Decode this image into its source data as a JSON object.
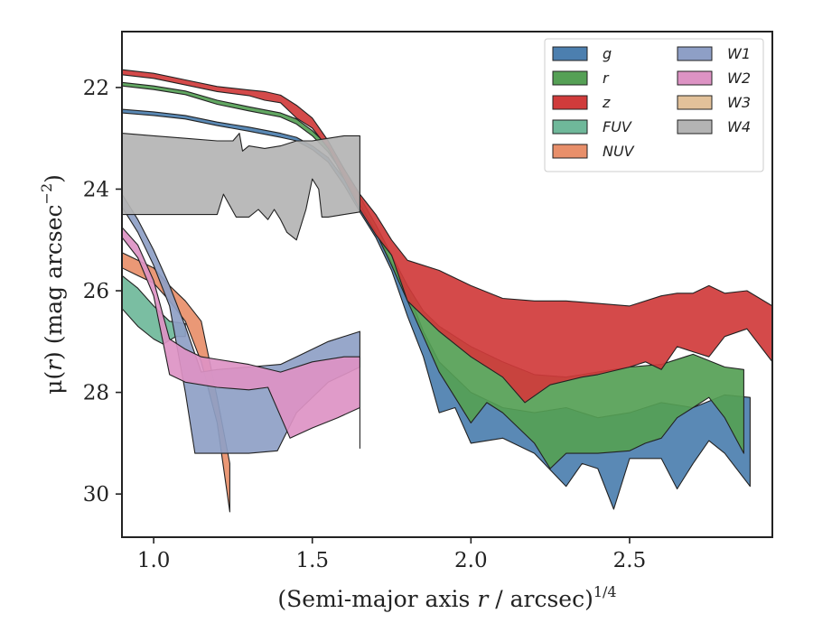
{
  "chart_data": {
    "type": "area",
    "xlabel": "(Semi-major axis r / arcsec)^1/4",
    "xlabel_parts": {
      "prefix": "(Semi-major axis ",
      "var": "r",
      "middle": " / arcsec)",
      "sup": "1/4"
    },
    "ylabel": "μ(r) (mag arcsec^-2)",
    "ylabel_parts": {
      "prefix": "μ(",
      "var": "r",
      "middle": ") (mag arcsec",
      "sup": "−2",
      "suffix": ")"
    },
    "xlim": [
      0.9,
      2.95
    ],
    "ylim": [
      30.85,
      20.9
    ],
    "y_inverted": true,
    "x_ticks": [
      1.0,
      1.5,
      2.0,
      2.5
    ],
    "x_tick_labels": [
      "1.0",
      "1.5",
      "2.0",
      "2.5"
    ],
    "y_ticks": [
      22,
      24,
      26,
      28,
      30
    ],
    "y_tick_labels": [
      "22",
      "24",
      "26",
      "28",
      "30"
    ],
    "legend_position": "top-right",
    "legend_columns": 2,
    "series": [
      {
        "name": "g",
        "color": "#4C7FAF",
        "upper": [
          [
            0.9,
            22.43
          ],
          [
            1.0,
            22.48
          ],
          [
            1.1,
            22.55
          ],
          [
            1.2,
            22.68
          ],
          [
            1.3,
            22.78
          ],
          [
            1.4,
            22.9
          ],
          [
            1.45,
            22.98
          ],
          [
            1.5,
            23.15
          ],
          [
            1.55,
            23.38
          ],
          [
            1.6,
            23.8
          ],
          [
            1.65,
            24.3
          ],
          [
            1.7,
            24.8
          ],
          [
            1.75,
            25.45
          ],
          [
            1.8,
            26.0
          ],
          [
            1.85,
            26.8
          ],
          [
            1.9,
            27.4
          ],
          [
            2.0,
            28.0
          ],
          [
            2.1,
            28.3
          ],
          [
            2.2,
            28.4
          ],
          [
            2.3,
            28.3
          ],
          [
            2.4,
            28.5
          ],
          [
            2.5,
            28.4
          ],
          [
            2.6,
            28.2
          ],
          [
            2.7,
            28.3
          ],
          [
            2.8,
            28.05
          ],
          [
            2.88,
            28.1
          ]
        ],
        "lower": [
          [
            0.9,
            22.5
          ],
          [
            1.0,
            22.55
          ],
          [
            1.1,
            22.62
          ],
          [
            1.2,
            22.75
          ],
          [
            1.3,
            22.86
          ],
          [
            1.4,
            22.98
          ],
          [
            1.45,
            23.05
          ],
          [
            1.5,
            23.22
          ],
          [
            1.55,
            23.47
          ],
          [
            1.6,
            23.92
          ],
          [
            1.65,
            24.45
          ],
          [
            1.7,
            24.95
          ],
          [
            1.75,
            25.6
          ],
          [
            1.8,
            26.5
          ],
          [
            1.85,
            27.3
          ],
          [
            1.9,
            28.4
          ],
          [
            1.95,
            28.3
          ],
          [
            2.0,
            29.0
          ],
          [
            2.1,
            28.9
          ],
          [
            2.2,
            29.2
          ],
          [
            2.3,
            29.85
          ],
          [
            2.35,
            29.4
          ],
          [
            2.4,
            29.5
          ],
          [
            2.45,
            30.3
          ],
          [
            2.5,
            29.3
          ],
          [
            2.6,
            29.3
          ],
          [
            2.65,
            29.9
          ],
          [
            2.7,
            29.4
          ],
          [
            2.75,
            28.95
          ],
          [
            2.8,
            29.2
          ],
          [
            2.88,
            29.85
          ]
        ]
      },
      {
        "name": "r",
        "color": "#55A055",
        "upper": [
          [
            0.9,
            21.9
          ],
          [
            1.0,
            21.97
          ],
          [
            1.1,
            22.07
          ],
          [
            1.2,
            22.25
          ],
          [
            1.3,
            22.38
          ],
          [
            1.4,
            22.5
          ],
          [
            1.45,
            22.62
          ],
          [
            1.5,
            22.85
          ],
          [
            1.55,
            23.15
          ],
          [
            1.6,
            23.6
          ],
          [
            1.65,
            24.15
          ],
          [
            1.7,
            24.7
          ],
          [
            1.75,
            25.3
          ],
          [
            1.8,
            25.9
          ],
          [
            1.85,
            26.4
          ],
          [
            1.9,
            26.7
          ],
          [
            2.0,
            27.1
          ],
          [
            2.1,
            27.4
          ],
          [
            2.2,
            27.65
          ],
          [
            2.3,
            27.7
          ],
          [
            2.4,
            27.6
          ],
          [
            2.5,
            27.5
          ],
          [
            2.6,
            27.45
          ],
          [
            2.7,
            27.25
          ],
          [
            2.8,
            27.5
          ],
          [
            2.86,
            27.55
          ]
        ],
        "lower": [
          [
            0.9,
            21.97
          ],
          [
            1.0,
            22.04
          ],
          [
            1.1,
            22.14
          ],
          [
            1.2,
            22.33
          ],
          [
            1.3,
            22.46
          ],
          [
            1.4,
            22.58
          ],
          [
            1.45,
            22.72
          ],
          [
            1.5,
            22.95
          ],
          [
            1.55,
            23.27
          ],
          [
            1.6,
            23.73
          ],
          [
            1.65,
            24.3
          ],
          [
            1.7,
            24.85
          ],
          [
            1.75,
            25.5
          ],
          [
            1.8,
            26.2
          ],
          [
            1.85,
            26.9
          ],
          [
            1.9,
            27.6
          ],
          [
            1.95,
            28.1
          ],
          [
            2.0,
            28.6
          ],
          [
            2.05,
            28.2
          ],
          [
            2.1,
            28.4
          ],
          [
            2.2,
            29.0
          ],
          [
            2.25,
            29.5
          ],
          [
            2.3,
            29.2
          ],
          [
            2.4,
            29.2
          ],
          [
            2.5,
            29.15
          ],
          [
            2.55,
            29.0
          ],
          [
            2.6,
            28.9
          ],
          [
            2.65,
            28.5
          ],
          [
            2.7,
            28.3
          ],
          [
            2.75,
            28.1
          ],
          [
            2.8,
            28.5
          ],
          [
            2.86,
            29.2
          ]
        ]
      },
      {
        "name": "z",
        "color": "#D03B3B",
        "upper": [
          [
            0.9,
            21.65
          ],
          [
            1.0,
            21.72
          ],
          [
            1.1,
            21.85
          ],
          [
            1.2,
            21.98
          ],
          [
            1.3,
            22.05
          ],
          [
            1.35,
            22.08
          ],
          [
            1.4,
            22.15
          ],
          [
            1.45,
            22.35
          ],
          [
            1.5,
            22.6
          ],
          [
            1.55,
            23.05
          ],
          [
            1.6,
            23.6
          ],
          [
            1.65,
            24.1
          ],
          [
            1.7,
            24.5
          ],
          [
            1.75,
            25.0
          ],
          [
            1.8,
            25.4
          ],
          [
            1.9,
            25.6
          ],
          [
            2.0,
            25.9
          ],
          [
            2.1,
            26.15
          ],
          [
            2.2,
            26.2
          ],
          [
            2.3,
            26.2
          ],
          [
            2.4,
            26.25
          ],
          [
            2.5,
            26.3
          ],
          [
            2.6,
            26.1
          ],
          [
            2.65,
            26.05
          ],
          [
            2.7,
            26.05
          ],
          [
            2.75,
            25.9
          ],
          [
            2.8,
            26.05
          ],
          [
            2.87,
            26.0
          ],
          [
            2.95,
            26.3
          ]
        ],
        "lower": [
          [
            0.9,
            21.75
          ],
          [
            1.0,
            21.82
          ],
          [
            1.1,
            21.95
          ],
          [
            1.2,
            22.08
          ],
          [
            1.3,
            22.16
          ],
          [
            1.35,
            22.25
          ],
          [
            1.4,
            22.3
          ],
          [
            1.45,
            22.6
          ],
          [
            1.5,
            22.8
          ],
          [
            1.55,
            23.2
          ],
          [
            1.6,
            23.8
          ],
          [
            1.65,
            24.4
          ],
          [
            1.7,
            24.9
          ],
          [
            1.75,
            25.3
          ],
          [
            1.8,
            26.2
          ],
          [
            1.9,
            26.8
          ],
          [
            2.0,
            27.3
          ],
          [
            2.1,
            27.7
          ],
          [
            2.17,
            28.2
          ],
          [
            2.25,
            27.85
          ],
          [
            2.35,
            27.7
          ],
          [
            2.4,
            27.65
          ],
          [
            2.5,
            27.5
          ],
          [
            2.55,
            27.4
          ],
          [
            2.6,
            27.55
          ],
          [
            2.65,
            27.1
          ],
          [
            2.7,
            27.2
          ],
          [
            2.75,
            27.3
          ],
          [
            2.8,
            26.9
          ],
          [
            2.87,
            26.75
          ],
          [
            2.95,
            27.4
          ]
        ]
      },
      {
        "name": "FUV",
        "color": "#6FB89A",
        "upper": [
          [
            0.9,
            25.7
          ],
          [
            0.95,
            25.95
          ],
          [
            1.0,
            26.3
          ],
          [
            1.05,
            26.6
          ],
          [
            1.1,
            26.65
          ]
        ],
        "lower": [
          [
            0.9,
            26.35
          ],
          [
            0.95,
            26.7
          ],
          [
            1.0,
            26.95
          ],
          [
            1.03,
            27.05
          ],
          [
            1.07,
            26.9
          ],
          [
            1.1,
            26.9
          ]
        ]
      },
      {
        "name": "NUV",
        "color": "#E88F6A",
        "upper": [
          [
            0.9,
            25.25
          ],
          [
            0.95,
            25.4
          ],
          [
            1.0,
            25.55
          ],
          [
            1.05,
            25.9
          ],
          [
            1.1,
            26.2
          ],
          [
            1.15,
            26.6
          ],
          [
            1.2,
            28.1
          ],
          [
            1.24,
            29.4
          ]
        ],
        "lower": [
          [
            0.9,
            25.55
          ],
          [
            0.95,
            25.7
          ],
          [
            1.0,
            25.85
          ],
          [
            1.05,
            26.2
          ],
          [
            1.1,
            26.6
          ],
          [
            1.15,
            27.4
          ],
          [
            1.2,
            28.6
          ],
          [
            1.24,
            30.35
          ]
        ]
      },
      {
        "name": "W1",
        "color": "#8E9FC6",
        "upper": [
          [
            0.9,
            24.1
          ],
          [
            0.95,
            24.6
          ],
          [
            1.0,
            25.2
          ],
          [
            1.05,
            25.9
          ],
          [
            1.1,
            26.7
          ],
          [
            1.15,
            27.6
          ],
          [
            1.2,
            27.55
          ],
          [
            1.3,
            27.5
          ],
          [
            1.4,
            27.45
          ],
          [
            1.45,
            27.3
          ],
          [
            1.55,
            27.0
          ],
          [
            1.65,
            26.8
          ]
        ],
        "lower": [
          [
            0.9,
            24.35
          ],
          [
            0.95,
            24.85
          ],
          [
            1.0,
            25.5
          ],
          [
            1.05,
            26.3
          ],
          [
            1.1,
            28.0
          ],
          [
            1.13,
            29.2
          ],
          [
            1.2,
            29.2
          ],
          [
            1.3,
            29.2
          ],
          [
            1.39,
            29.15
          ],
          [
            1.45,
            28.4
          ],
          [
            1.55,
            27.8
          ],
          [
            1.65,
            27.5
          ]
        ]
      },
      {
        "name": "W2",
        "color": "#DD93C4",
        "upper": [
          [
            0.9,
            24.75
          ],
          [
            0.95,
            25.1
          ],
          [
            1.0,
            25.8
          ],
          [
            1.05,
            26.95
          ],
          [
            1.1,
            27.15
          ],
          [
            1.15,
            27.3
          ],
          [
            1.2,
            27.35
          ],
          [
            1.3,
            27.45
          ],
          [
            1.4,
            27.6
          ],
          [
            1.5,
            27.4
          ],
          [
            1.6,
            27.3
          ],
          [
            1.65,
            27.3
          ]
        ],
        "lower": [
          [
            0.9,
            24.95
          ],
          [
            0.95,
            25.35
          ],
          [
            1.0,
            26.1
          ],
          [
            1.05,
            27.65
          ],
          [
            1.1,
            27.8
          ],
          [
            1.2,
            27.9
          ],
          [
            1.3,
            27.95
          ],
          [
            1.36,
            27.9
          ],
          [
            1.43,
            28.9
          ],
          [
            1.5,
            28.7
          ],
          [
            1.58,
            28.5
          ],
          [
            1.65,
            28.3
          ],
          [
            1.65,
            29.1
          ]
        ]
      },
      {
        "name": "W3",
        "color": "#E2C19A",
        "upper": [],
        "lower": []
      },
      {
        "name": "W4",
        "color": "#B4B4B4",
        "upper": [
          [
            0.9,
            22.9
          ],
          [
            1.0,
            22.95
          ],
          [
            1.1,
            23.0
          ],
          [
            1.2,
            23.05
          ],
          [
            1.25,
            23.05
          ],
          [
            1.27,
            22.9
          ],
          [
            1.28,
            23.25
          ],
          [
            1.3,
            23.15
          ],
          [
            1.35,
            23.2
          ],
          [
            1.4,
            23.15
          ],
          [
            1.45,
            23.05
          ],
          [
            1.5,
            23.05
          ],
          [
            1.55,
            23.0
          ],
          [
            1.6,
            22.95
          ],
          [
            1.65,
            22.95
          ]
        ],
        "lower": [
          [
            0.9,
            24.5
          ],
          [
            1.0,
            24.5
          ],
          [
            1.1,
            24.5
          ],
          [
            1.2,
            24.5
          ],
          [
            1.22,
            24.1
          ],
          [
            1.26,
            24.55
          ],
          [
            1.3,
            24.55
          ],
          [
            1.33,
            24.4
          ],
          [
            1.36,
            24.6
          ],
          [
            1.38,
            24.4
          ],
          [
            1.4,
            24.6
          ],
          [
            1.42,
            24.85
          ],
          [
            1.45,
            25.0
          ],
          [
            1.48,
            24.4
          ],
          [
            1.5,
            23.8
          ],
          [
            1.52,
            24.0
          ],
          [
            1.53,
            24.55
          ],
          [
            1.55,
            24.55
          ],
          [
            1.6,
            24.5
          ],
          [
            1.65,
            24.45
          ]
        ]
      }
    ]
  }
}
